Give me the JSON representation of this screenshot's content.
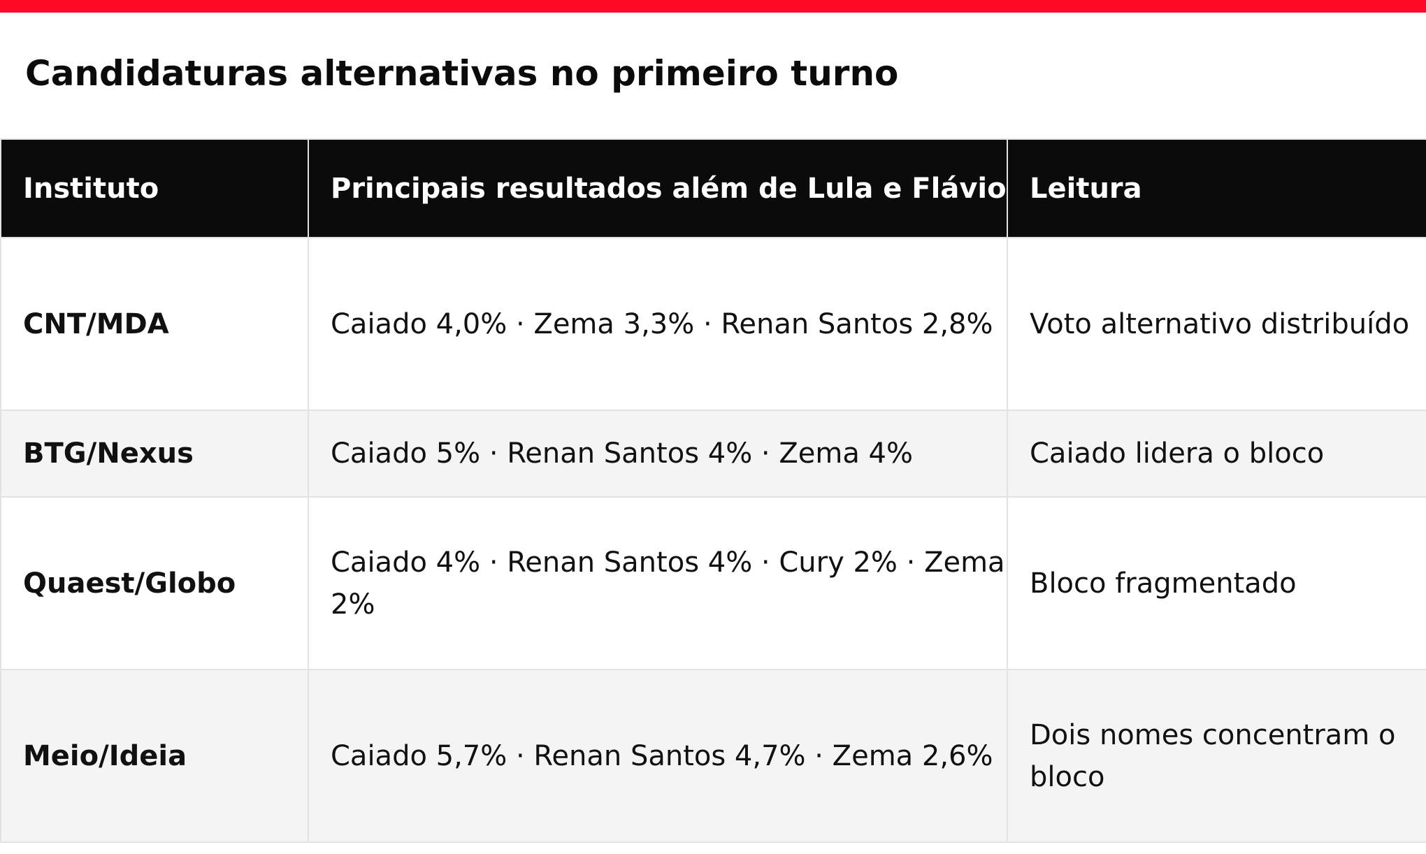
{
  "title": "Candidaturas alternativas no primeiro turno",
  "colors": {
    "accent_bar": "#ff0a24",
    "header_bg": "#0b0b0b",
    "row_alt_bg": "#f4f4f4",
    "grid": "#e2e2e2"
  },
  "table": {
    "headers": {
      "institute": "Instituto",
      "results": "Principais resultados além de Lula e Flávio",
      "reading": "Leitura"
    },
    "rows": [
      {
        "institute": "CNT/MDA",
        "results": "Caiado 4,0% · Zema 3,3% · Renan Santos 2,8%",
        "reading": "Voto alternativo distribuído"
      },
      {
        "institute": "BTG/Nexus",
        "results": "Caiado 5% · Renan Santos 4% · Zema 4%",
        "reading": "Caiado lidera o bloco"
      },
      {
        "institute": "Quaest/Globo",
        "results": "Caiado 4% · Renan Santos 4% · Cury 2% · Zema 2%",
        "reading": "Bloco fragmentado"
      },
      {
        "institute": "Meio/Ideia",
        "results": "Caiado 5,7% · Renan Santos 4,7% · Zema 2,6%",
        "reading": "Dois nomes concentram o bloco"
      }
    ]
  }
}
